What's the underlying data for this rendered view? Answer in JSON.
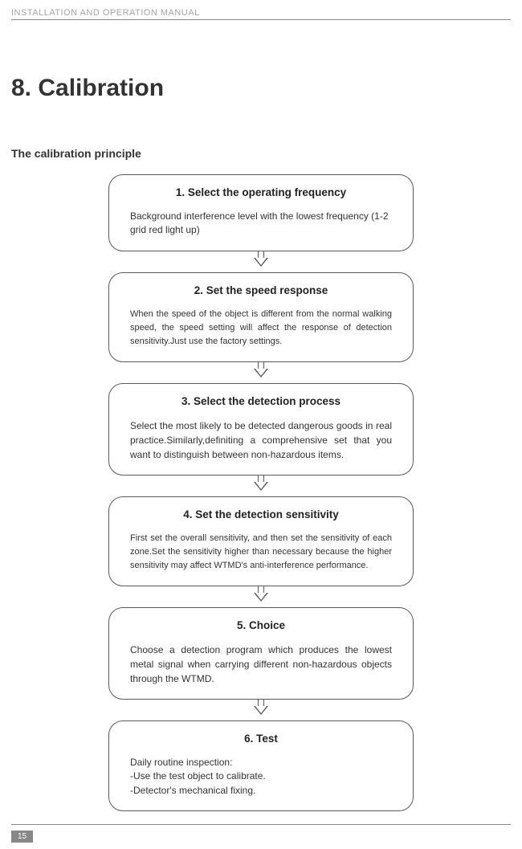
{
  "header": {
    "text": "INSTALLATION AND OPERATION MANUAL"
  },
  "chapter": {
    "title": "8.  Calibration"
  },
  "section": {
    "title": "The calibration principle"
  },
  "steps": [
    {
      "title": "1. Select the operating frequency",
      "body": "Background interference level with the lowest frequency (1-2 grid red light up)",
      "bodyClass": "step-body"
    },
    {
      "title": "2. Set the speed response",
      "body": "When the speed of the object is different from the normal walking speed, the speed setting will affect the response of detection sensitivity.Just use the factory settings.",
      "bodyClass": "step-body-small"
    },
    {
      "title": "3. Select the detection process",
      "body": "Select the most likely to be detected dangerous goods in real practice.Similarly,definiting a comprehensive set that you want to distinguish between non-hazardous items.",
      "bodyClass": "step-body-justify"
    },
    {
      "title": "4. Set the detection sensitivity",
      "body": "First set the overall sensitivity, and then set the sensitivity of each zone.Set the sensitivity higher than necessary because the higher sensitivity may affect WTMD's anti-interference performance.",
      "bodyClass": "step-body-small"
    },
    {
      "title": "5. Choice",
      "body": "Choose a detection program which produces the lowest metal signal when carrying different non-hazardous objects through the WTMD.",
      "bodyClass": "step-body-justify"
    },
    {
      "title": "6. Test",
      "body": "Daily routine inspection:\n-Use the test object to calibrate.\n-Detector's mechanical fixing.",
      "bodyClass": "step-body"
    }
  ],
  "pageNumber": "15"
}
